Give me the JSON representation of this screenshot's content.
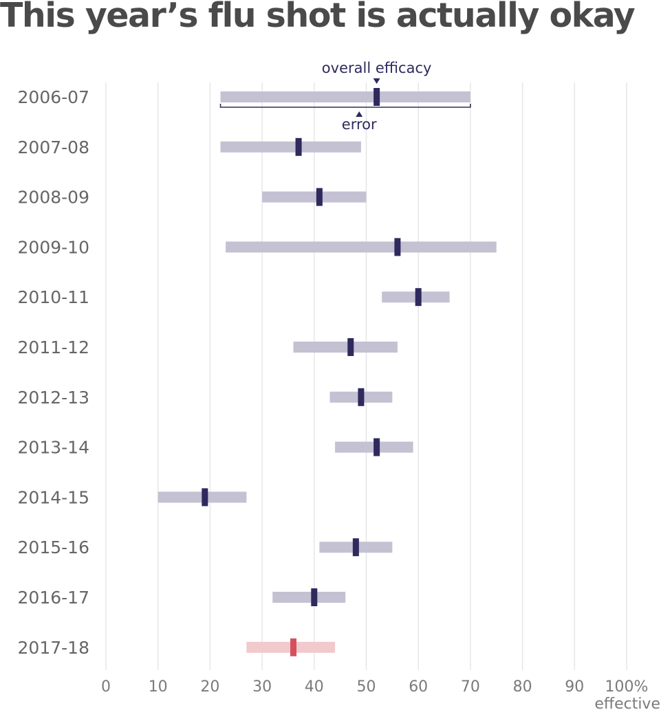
{
  "chart_data": {
    "type": "range_bar",
    "title": "This year’s flu shot is actually okay",
    "x_axis": {
      "range": [
        0,
        100
      ],
      "ticks": [
        0,
        10,
        20,
        30,
        40,
        50,
        60,
        70,
        80,
        90,
        100
      ],
      "tick_labels": [
        "0",
        "10",
        "20",
        "30",
        "40",
        "50",
        "60",
        "70",
        "80",
        "90",
        "100%"
      ],
      "label": "effective",
      "grid": true
    },
    "annotations": {
      "overall": "overall efficacy",
      "error": "error"
    },
    "colors": {
      "range": "#c4c1d3",
      "point": "#2e2a5e",
      "highlight_range": "#f2c9cd",
      "highlight_point": "#d5505f",
      "grid": "#e6e6e6"
    },
    "seasons": [
      {
        "label": "2006-07",
        "low": 22,
        "high": 70,
        "value": 52
      },
      {
        "label": "2007-08",
        "low": 22,
        "high": 49,
        "value": 37
      },
      {
        "label": "2008-09",
        "low": 30,
        "high": 50,
        "value": 41
      },
      {
        "label": "2009-10",
        "low": 23,
        "high": 75,
        "value": 56
      },
      {
        "label": "2010-11",
        "low": 53,
        "high": 66,
        "value": 60
      },
      {
        "label": "2011-12",
        "low": 36,
        "high": 56,
        "value": 47
      },
      {
        "label": "2012-13",
        "low": 43,
        "high": 55,
        "value": 49
      },
      {
        "label": "2013-14",
        "low": 44,
        "high": 59,
        "value": 52
      },
      {
        "label": "2014-15",
        "low": 10,
        "high": 27,
        "value": 19
      },
      {
        "label": "2015-16",
        "low": 41,
        "high": 55,
        "value": 48
      },
      {
        "label": "2016-17",
        "low": 32,
        "high": 46,
        "value": 40
      },
      {
        "label": "2017-18",
        "low": 27,
        "high": 44,
        "value": 36,
        "highlight": true
      }
    ]
  }
}
